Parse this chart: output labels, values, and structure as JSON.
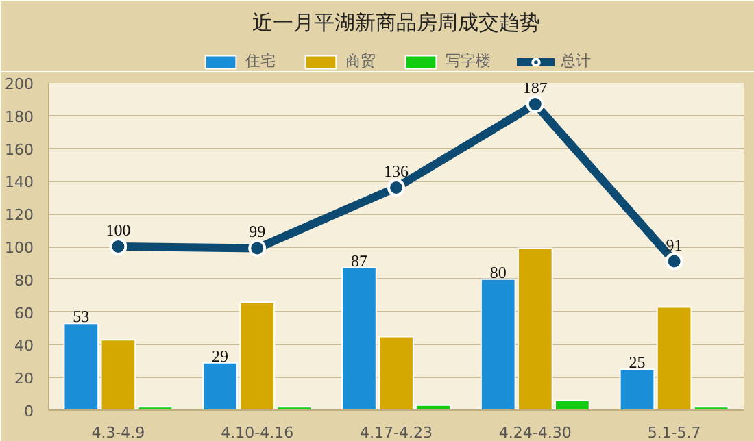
{
  "chart_data": {
    "type": "bar",
    "title": "近一月平湖新商品房周成交趋势",
    "categories": [
      "4.3-4.9",
      "4.10-4.16",
      "4.17-4.23",
      "4.24-4.30",
      "5.1-5.7"
    ],
    "series": [
      {
        "name": "住宅",
        "color": "#1a8fd8",
        "values": [
          53,
          29,
          87,
          80,
          25
        ],
        "value_labels": [
          "53",
          "29",
          "87",
          "80",
          "25"
        ]
      },
      {
        "name": "商贸",
        "color": "#d4a800",
        "values": [
          43,
          66,
          45,
          99,
          63
        ]
      },
      {
        "name": "写字楼",
        "color": "#11cc11",
        "values": [
          2,
          2,
          3,
          6,
          2
        ]
      },
      {
        "name": "总计",
        "type": "line",
        "color": "#0d4a72",
        "values": [
          100,
          99,
          136,
          187,
          91
        ],
        "value_labels": [
          "100",
          "99",
          "136",
          "187",
          "91"
        ],
        "marker": "circle"
      }
    ],
    "ylim": [
      0,
      200
    ],
    "yticks": [
      0,
      20,
      40,
      60,
      80,
      100,
      120,
      140,
      160,
      180,
      200
    ],
    "grid": "y",
    "legend": "top"
  }
}
